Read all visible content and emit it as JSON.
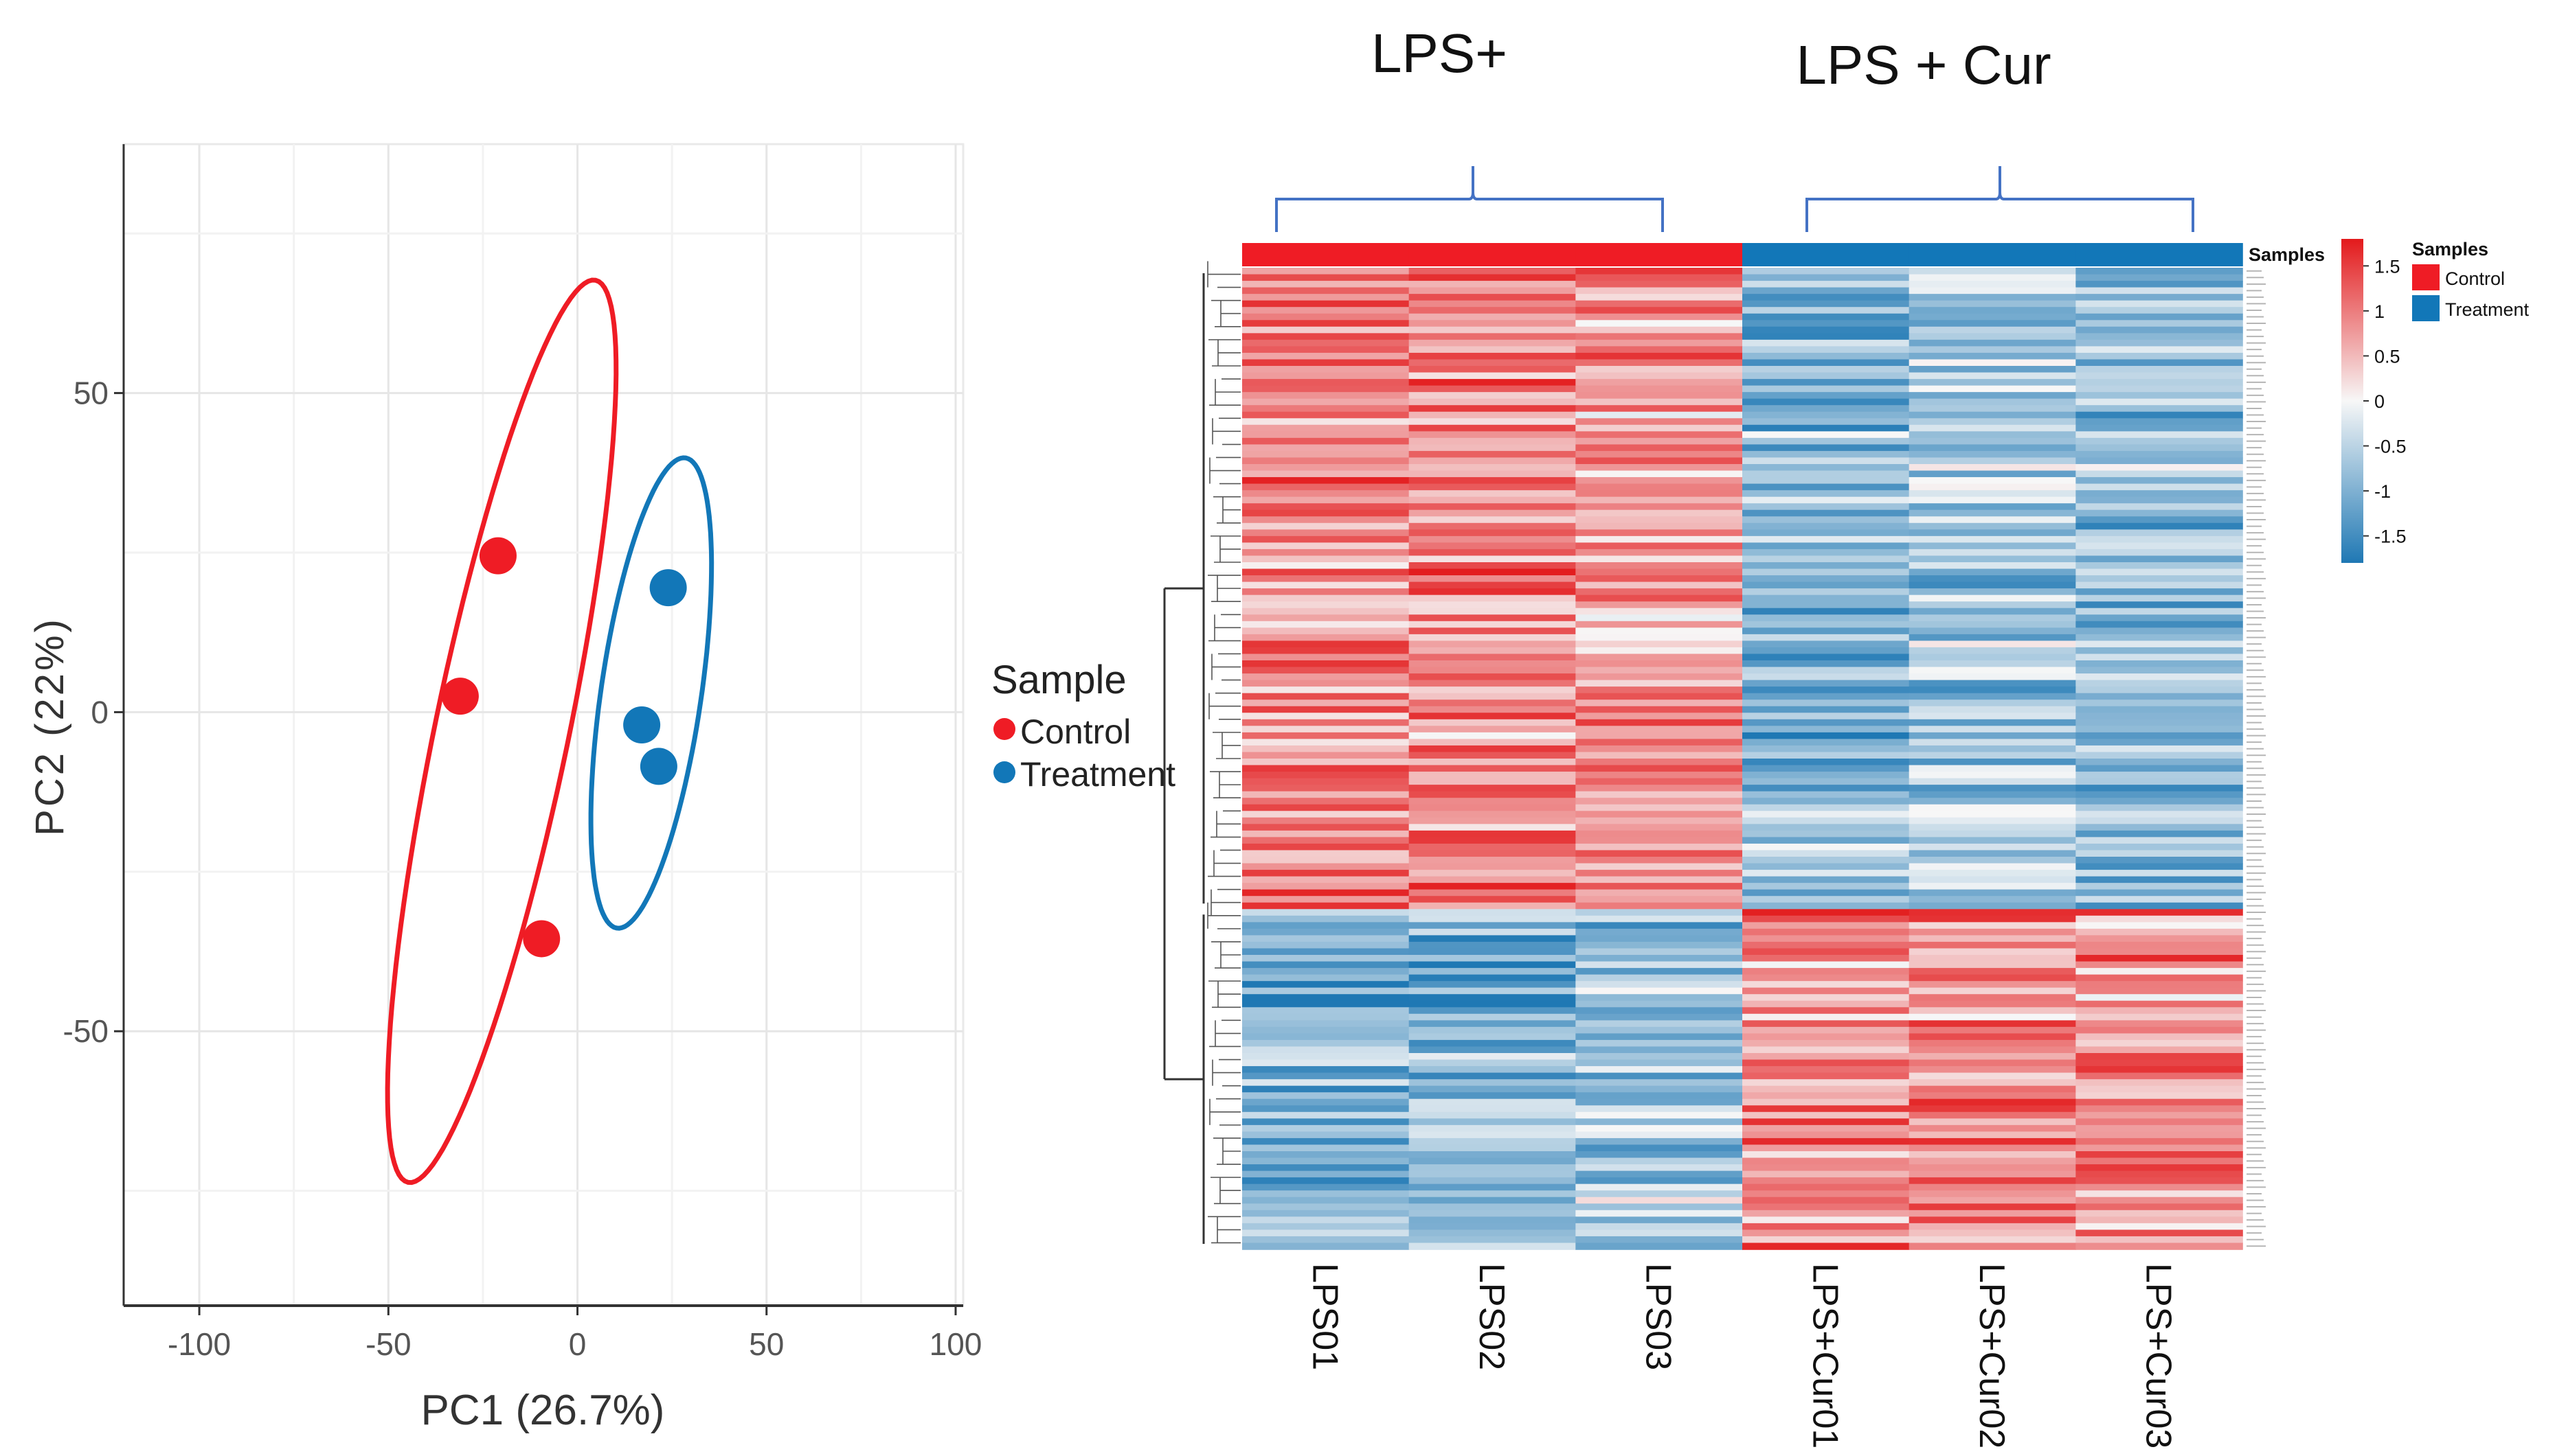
{
  "chart_data": [
    {
      "type": "scatter",
      "title": "",
      "xlabel": "PC1 (26.7%)",
      "ylabel": "PC2 (22%)",
      "xlim": [
        -120,
        102
      ],
      "ylim": [
        -93,
        89
      ],
      "xticks": [
        -100,
        -50,
        0,
        50,
        100
      ],
      "xtick_labels": [
        "-100",
        "-50",
        "0",
        "50",
        "100"
      ],
      "yticks": [
        50,
        0,
        -50
      ],
      "ytick_labels": [
        "50",
        "0",
        "-50"
      ],
      "grid": true,
      "legend": {
        "title": "Sample",
        "position": "right",
        "entries": [
          {
            "label": "Control",
            "color": "#ef1c25"
          },
          {
            "label": "Treatment",
            "color": "#1277b8"
          }
        ]
      },
      "series": [
        {
          "name": "Control",
          "color": "#ef1c25",
          "points": [
            {
              "x": -21,
              "y": 24.5
            },
            {
              "x": -31,
              "y": 2.5
            },
            {
              "x": -9.5,
              "y": -35.5
            }
          ],
          "ellipse": {
            "center": [
              -20,
              -3
            ],
            "semi_axes": [
              17,
              75
            ],
            "rotation_deg": -20
          }
        },
        {
          "name": "Treatment",
          "color": "#1277b8",
          "points": [
            {
              "x": 24,
              "y": 19.5
            },
            {
              "x": 17,
              "y": -2
            },
            {
              "x": 21.5,
              "y": -8.5
            }
          ],
          "ellipse": {
            "center": [
              19.5,
              3
            ],
            "semi_axes": [
              13,
              38
            ],
            "rotation_deg": -15
          }
        }
      ]
    },
    {
      "type": "heatmap",
      "group_labels": [
        "LPS+",
        "LPS + Cur"
      ],
      "columns": [
        "LPS01",
        "LPS02",
        "LPS03",
        "LPS+Cur01",
        "LPS+Cur02",
        "LPS+Cur03"
      ],
      "column_groups": [
        "Control",
        "Control",
        "Control",
        "Treatment",
        "Treatment",
        "Treatment"
      ],
      "annotation_row_label": "Samples",
      "colorbar": {
        "min": -1.8,
        "max": 1.8,
        "ticks": [
          1.5,
          1,
          0.5,
          0,
          -0.5,
          -1,
          -1.5
        ],
        "tick_labels": [
          "1.5",
          "1",
          "0.5",
          "0",
          "-0.5",
          "-1",
          "-1.5"
        ],
        "low_color": "#1f78b4",
        "mid_color": "#f7f7f7",
        "high_color": "#e31a1c"
      },
      "legend": {
        "title": "Samples",
        "entries": [
          {
            "label": "Control",
            "color": "#ef1c25"
          },
          {
            "label": "Treatment",
            "color": "#1277b8"
          }
        ]
      },
      "n_rows": 150,
      "row_clusters": [
        {
          "name": "up-in-control",
          "rows": 98,
          "column_means": [
            0.9,
            0.95,
            0.75,
            -0.95,
            -0.7,
            -0.85
          ]
        },
        {
          "name": "up-in-treatment",
          "rows": 52,
          "column_means": [
            -0.95,
            -1.0,
            -0.65,
            0.9,
            0.9,
            0.85
          ]
        }
      ]
    }
  ]
}
